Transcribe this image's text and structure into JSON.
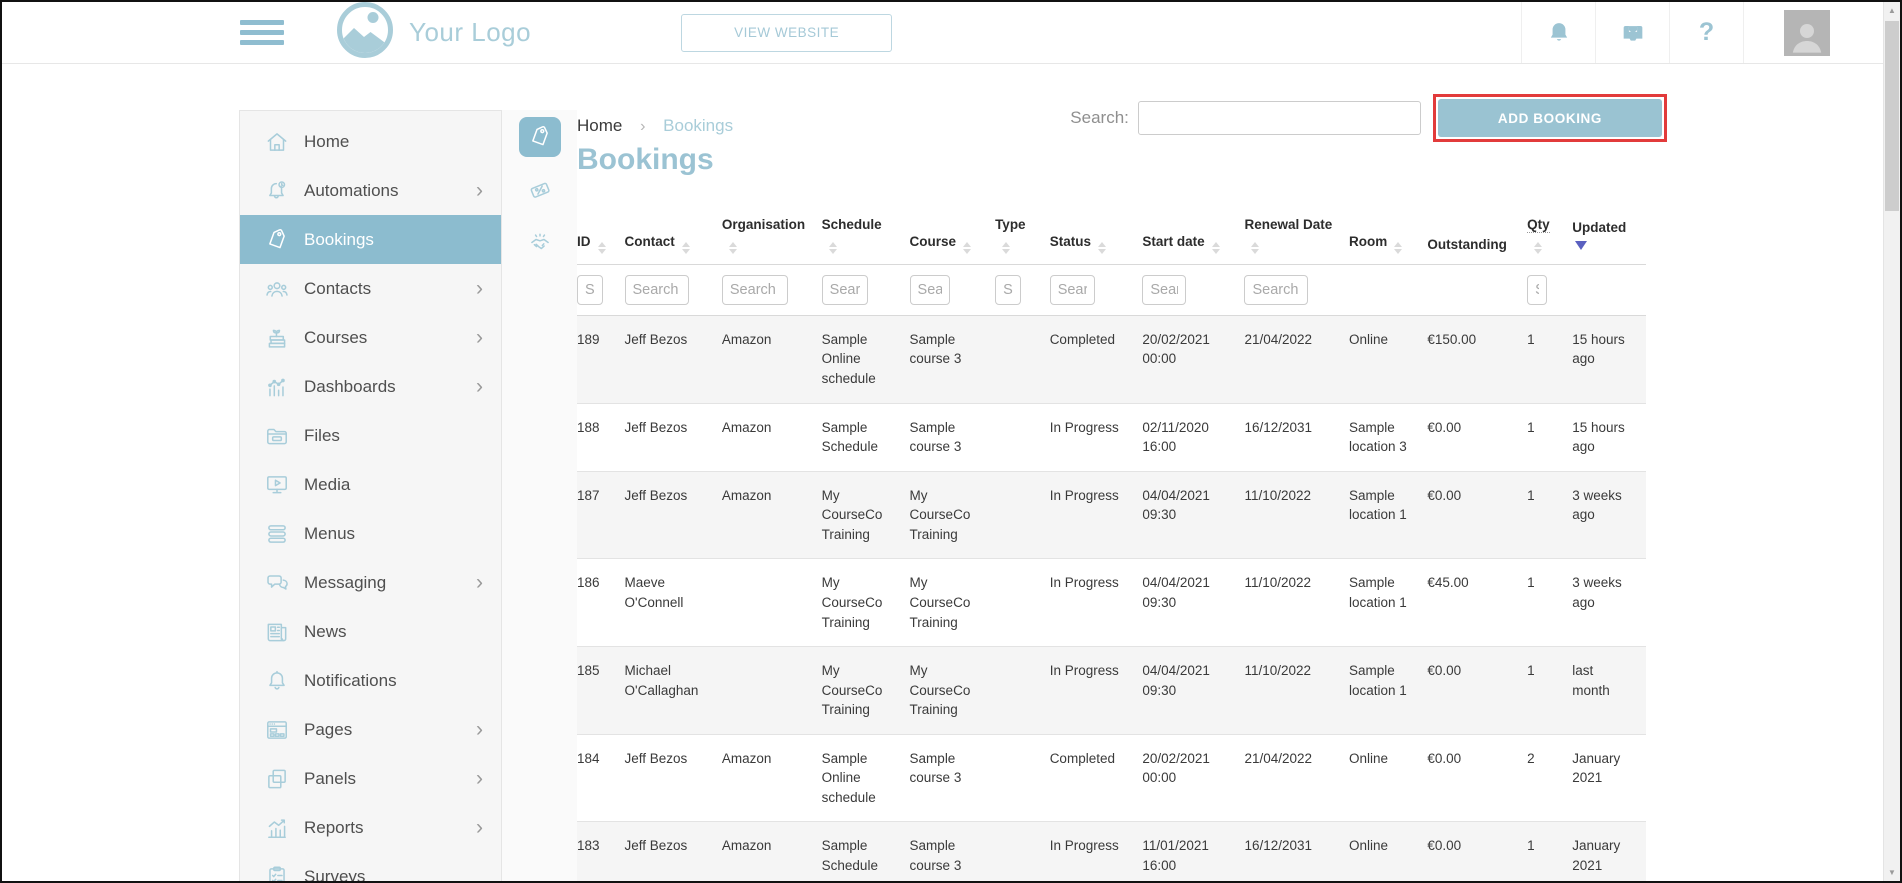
{
  "header": {
    "logo_text": "Your Logo",
    "view_website_label": "VIEW WEBSITE",
    "help_glyph": "?",
    "icons": [
      "bell-icon",
      "inbox-icon",
      "help-icon",
      "avatar"
    ]
  },
  "sidebar": {
    "items": [
      {
        "label": "Home",
        "icon": "home-icon",
        "chevron": false,
        "selected": false
      },
      {
        "label": "Automations",
        "icon": "automations-icon",
        "chevron": true,
        "selected": false
      },
      {
        "label": "Bookings",
        "icon": "bookings-tag-icon",
        "chevron": false,
        "selected": true
      },
      {
        "label": "Contacts",
        "icon": "contacts-icon",
        "chevron": true,
        "selected": false
      },
      {
        "label": "Courses",
        "icon": "courses-icon",
        "chevron": true,
        "selected": false
      },
      {
        "label": "Dashboards",
        "icon": "dashboards-icon",
        "chevron": true,
        "selected": false
      },
      {
        "label": "Files",
        "icon": "files-icon",
        "chevron": false,
        "selected": false
      },
      {
        "label": "Media",
        "icon": "media-icon",
        "chevron": false,
        "selected": false
      },
      {
        "label": "Menus",
        "icon": "menus-icon",
        "chevron": false,
        "selected": false
      },
      {
        "label": "Messaging",
        "icon": "messaging-icon",
        "chevron": true,
        "selected": false
      },
      {
        "label": "News",
        "icon": "news-icon",
        "chevron": false,
        "selected": false
      },
      {
        "label": "Notifications",
        "icon": "notifications-icon",
        "chevron": false,
        "selected": false
      },
      {
        "label": "Pages",
        "icon": "pages-icon",
        "chevron": true,
        "selected": false
      },
      {
        "label": "Panels",
        "icon": "panels-icon",
        "chevron": true,
        "selected": false
      },
      {
        "label": "Reports",
        "icon": "reports-icon",
        "chevron": true,
        "selected": false
      },
      {
        "label": "Surveys",
        "icon": "surveys-icon",
        "chevron": false,
        "selected": false
      }
    ]
  },
  "icon_rail": {
    "items": [
      {
        "name": "bookings-tag-icon",
        "active": true
      },
      {
        "name": "vouchers-ticket-icon",
        "active": false
      },
      {
        "name": "resellers-handshake-icon",
        "active": false
      }
    ]
  },
  "breadcrumb": {
    "home": "Home",
    "separator": "›",
    "current": "Bookings"
  },
  "page": {
    "title": "Bookings",
    "search_label": "Search:",
    "search_value": "",
    "add_button_label": "ADD BOOKING"
  },
  "table": {
    "filter_placeholder": "Search",
    "columns": [
      {
        "label": "ID",
        "sort": "both",
        "filter": true,
        "underline": false
      },
      {
        "label": "Contact",
        "sort": "both",
        "filter": true,
        "underline": false
      },
      {
        "label": "Organisation",
        "sort": "both",
        "filter": true,
        "underline": false
      },
      {
        "label": "Schedule",
        "sort": "both",
        "filter": true,
        "underline": false
      },
      {
        "label": "Course",
        "sort": "both",
        "filter": true,
        "underline": false
      },
      {
        "label": "Type",
        "sort": "both",
        "filter": true,
        "underline": false
      },
      {
        "label": "Status",
        "sort": "both",
        "filter": true,
        "underline": false
      },
      {
        "label": "Start date",
        "sort": "both",
        "filter": true,
        "underline": false
      },
      {
        "label": "Renewal Date",
        "sort": "both",
        "filter": true,
        "underline": false
      },
      {
        "label": "Room",
        "sort": "both",
        "filter": false,
        "underline": false
      },
      {
        "label": "Outstanding",
        "sort": "none",
        "filter": false,
        "underline": false
      },
      {
        "label": "Qty",
        "sort": "both",
        "filter": true,
        "underline": true
      },
      {
        "label": "Updated",
        "sort": "desc",
        "filter": false,
        "underline": false
      }
    ],
    "rows": [
      [
        "189",
        "Jeff Bezos",
        "Amazon",
        "Sample Online schedule",
        "Sample course 3",
        "",
        "Completed",
        "20/02/2021 00:00",
        "21/04/2022",
        "Online",
        "€150.00",
        "1",
        "15 hours ago"
      ],
      [
        "188",
        "Jeff Bezos",
        "Amazon",
        "Sample Schedule",
        "Sample course 3",
        "",
        "In Progress",
        "02/11/2020 16:00",
        "16/12/2031",
        "Sample location 3",
        "€0.00",
        "1",
        "15 hours ago"
      ],
      [
        "187",
        "Jeff Bezos",
        "Amazon",
        "My CourseCo Training",
        "My CourseCo Training",
        "",
        "In Progress",
        "04/04/2021 09:30",
        "11/10/2022",
        "Sample location 1",
        "€0.00",
        "1",
        "3 weeks ago"
      ],
      [
        "186",
        "Maeve O'Connell",
        "",
        "My CourseCo Training",
        "My CourseCo Training",
        "",
        "In Progress",
        "04/04/2021 09:30",
        "11/10/2022",
        "Sample location 1",
        "€45.00",
        "1",
        "3 weeks ago"
      ],
      [
        "185",
        "Michael O'Callaghan",
        "",
        "My CourseCo Training",
        "My CourseCo Training",
        "",
        "In Progress",
        "04/04/2021 09:30",
        "11/10/2022",
        "Sample location 1",
        "€0.00",
        "1",
        "last month"
      ],
      [
        "184",
        "Jeff Bezos",
        "Amazon",
        "Sample Online schedule",
        "Sample course 3",
        "",
        "Completed",
        "20/02/2021 00:00",
        "21/04/2022",
        "Online",
        "€0.00",
        "2",
        "January 2021"
      ],
      [
        "183",
        "Jeff Bezos",
        "Amazon",
        "Sample Schedule",
        "Sample course 3",
        "",
        "In Progress",
        "11/01/2021 16:00",
        "16/12/2031",
        "Online",
        "€0.00",
        "1",
        "January 2021"
      ]
    ]
  }
}
